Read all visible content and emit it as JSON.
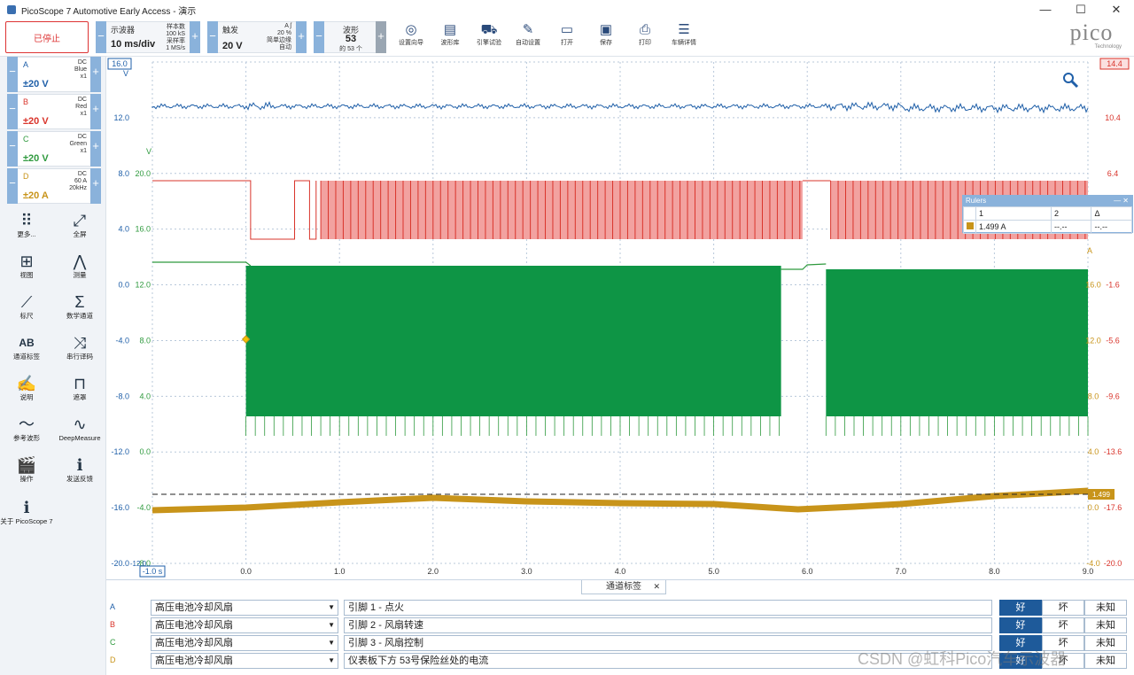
{
  "window": {
    "title": "PicoScope 7 Automotive Early Access  - 演示",
    "controls": [
      "—",
      "☐",
      "✕"
    ]
  },
  "toolbar": {
    "stop_label": "已停止",
    "timebase": {
      "label": "示波器",
      "value": "10 ms/div",
      "info1": "样本数",
      "info2": "100 kS",
      "info3": "采样率",
      "info4": "1 MS/s"
    },
    "trigger": {
      "label": "触发",
      "value": "20 V",
      "info1": "A  ʃ",
      "info2": "20 %",
      "info3": "简单边缘",
      "info4": "自动"
    },
    "waveforms": {
      "label": "波形",
      "value": "53",
      "sub": "的 53 个"
    },
    "items": [
      {
        "icon": "◎",
        "label": "设置向导"
      },
      {
        "icon": "▤",
        "label": "波形库"
      },
      {
        "icon": "⛟",
        "label": "引擎试验"
      },
      {
        "icon": "✎",
        "label": "自动设置"
      },
      {
        "icon": "▭",
        "label": "打开"
      },
      {
        "icon": "▣",
        "label": "保存"
      },
      {
        "icon": "⎙",
        "label": "打印"
      },
      {
        "icon": "☰",
        "label": "车辆详情"
      }
    ],
    "logo": "pico",
    "logo_sub": "Technology"
  },
  "channels": [
    {
      "name": "A",
      "coupling": "DC",
      "color_name": "Blue",
      "probe": "x1",
      "range": "±20 V",
      "color": "#1f5fa8"
    },
    {
      "name": "B",
      "coupling": "DC",
      "color_name": "Red",
      "probe": "x1",
      "range": "±20 V",
      "color": "#d9342b"
    },
    {
      "name": "C",
      "coupling": "DC",
      "color_name": "Green",
      "probe": "x1",
      "range": "±20 V",
      "color": "#2f9a3e"
    },
    {
      "name": "D",
      "coupling": "DC",
      "color_name": "60 A",
      "probe": "20kHz",
      "range": "±20 A",
      "color": "#c8941a"
    }
  ],
  "tools": [
    {
      "icon": "⠿",
      "label": "更多..."
    },
    {
      "icon": "⤢",
      "label": "全屏"
    },
    {
      "icon": "⊞",
      "label": "视图"
    },
    {
      "icon": "⋀",
      "label": "测量"
    },
    {
      "icon": "⟋",
      "label": "标尺"
    },
    {
      "icon": "Σ",
      "label": "数学通道"
    },
    {
      "icon": "AB",
      "label": "通道标签"
    },
    {
      "icon": "⤨",
      "label": "串行译码"
    },
    {
      "icon": "✍",
      "label": "说明"
    },
    {
      "icon": "⊓",
      "label": "遮罩"
    },
    {
      "icon": "〜",
      "label": "参考波形"
    },
    {
      "icon": "∿",
      "label": "DeepMeasure"
    },
    {
      "icon": "🎬",
      "label": "操作"
    },
    {
      "icon": "ℹ",
      "label": "发送反馈"
    },
    {
      "icon": "ℹ",
      "label": "关于 PicoScope 7"
    }
  ],
  "chart_data": {
    "type": "line",
    "x_axis": {
      "ticks": [
        "-1.0 s",
        "0.0",
        "1.0",
        "2.0",
        "3.0",
        "4.0",
        "5.0",
        "6.0",
        "7.0",
        "8.0",
        "9.0"
      ],
      "range": [
        -1.0,
        9.0
      ]
    },
    "axis_A": {
      "unit": "V",
      "ticks": [
        "16.0",
        "12.0",
        "8.0",
        "4.0",
        "0.0",
        "-4.0",
        "-8.0",
        "-12.0",
        "-16.0",
        "-20.0"
      ],
      "range": [
        -20,
        16
      ]
    },
    "axis_C": {
      "unit": "V",
      "ticks": [
        "20.0",
        "16.0",
        "12.0",
        "8.0",
        "4.0",
        "0.0",
        "-4.0",
        "-8.0",
        "-12.0"
      ],
      "range": [
        -12,
        20
      ]
    },
    "axis_B": {
      "ticks": [
        "14.4",
        "10.4",
        "6.4",
        "2.4",
        "-1.6",
        "-5.6",
        "-9.6",
        "-13.6",
        "-17.6",
        "-20.0"
      ]
    },
    "axis_D": {
      "unit": "A",
      "ticks": [
        "20.0",
        "16.0",
        "12.0",
        "8.0",
        "4.0",
        "0.0",
        "-4.0"
      ]
    },
    "bottom_marker": "-12.0",
    "ruler_value_label": "1.499",
    "series": [
      {
        "name": "A",
        "desc": "flat ~12.4 V with noise",
        "values": [
          12.4,
          12.4
        ]
      },
      {
        "name": "B",
        "desc": "PWM between ~0 V and ~4 V, gaps"
      },
      {
        "name": "C",
        "desc": "12 V baseline, switching to -12 V PWM band"
      },
      {
        "name": "D",
        "desc": "current rising ~-1.5 A to ~2 A"
      }
    ]
  },
  "rulers": {
    "title": "Rulers",
    "headers": [
      "",
      "1",
      "2",
      "Δ"
    ],
    "row": [
      "1.499 A",
      "--.--",
      "--.--"
    ]
  },
  "bottom": {
    "tab_label": "通道标签",
    "rows": [
      {
        "ch": "A",
        "component": "高压电池冷却风扇",
        "note": "引脚 1 - 点火",
        "good": "好",
        "bad": "坏",
        "unknown": "未知"
      },
      {
        "ch": "B",
        "component": "高压电池冷却风扇",
        "note": "引脚 2 - 风扇转速",
        "good": "好",
        "bad": "坏",
        "unknown": "未知"
      },
      {
        "ch": "C",
        "component": "高压电池冷却风扇",
        "note": "引脚 3 - 风扇控制",
        "good": "好",
        "bad": "坏",
        "unknown": "未知"
      },
      {
        "ch": "D",
        "component": "高压电池冷却风扇",
        "note": "仪表板下方 53号保险丝处的电流",
        "good": "好",
        "bad": "坏",
        "unknown": "未知"
      }
    ]
  },
  "watermark": "CSDN @虹科Pico汽车示波器"
}
